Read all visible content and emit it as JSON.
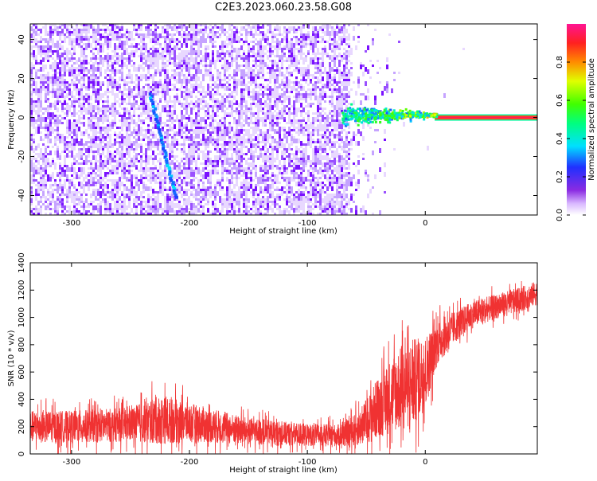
{
  "title": "C2E3.2023.060.23.58.G08",
  "chart_data": [
    {
      "type": "heatmap",
      "xlabel": "Height of straight line (km)",
      "ylabel": "Frequency (Hz)",
      "xlim": [
        -335,
        95
      ],
      "ylim": [
        -50,
        48
      ],
      "xticks": [
        -300,
        -200,
        -100,
        0
      ],
      "yticks": [
        -40,
        -20,
        0,
        20,
        40
      ],
      "colorbar": {
        "label": "Normalized spectral amplitude",
        "range": [
          0,
          1
        ],
        "ticks": [
          0.0,
          0.2,
          0.4,
          0.6,
          0.8
        ],
        "tick_labels": [
          "0.0",
          "0.2",
          "0.4",
          "0.6",
          "0.8"
        ]
      },
      "features": [
        {
          "name": "diagonal trace",
          "points": [
            [
              -233,
              12
            ],
            [
              -222,
              -15
            ],
            [
              -211,
              -42
            ]
          ],
          "amplitude": 0.25
        },
        {
          "name": "constant tone",
          "x_range": [
            8,
            95
          ],
          "frequency": 0,
          "amplitude": 0.95
        },
        {
          "name": "tone onset cluster",
          "x_range": [
            -70,
            10
          ],
          "frequency": 1,
          "amplitude": 0.45
        }
      ],
      "noise_edge_x": -65
    },
    {
      "type": "line",
      "xlabel": "Height of straight line (km)",
      "ylabel": "SNR (10 * v/v)",
      "xlim": [
        -335,
        95
      ],
      "ylim": [
        0,
        1400
      ],
      "xticks": [
        -300,
        -200,
        -100,
        0
      ],
      "yticks": [
        0,
        200,
        400,
        600,
        800,
        1000,
        1200,
        1400
      ],
      "series": [
        {
          "color": "#f03232",
          "x": [
            -335,
            -300,
            -250,
            -225,
            -200,
            -150,
            -100,
            -70,
            -55,
            -40,
            -25,
            -10,
            0,
            10,
            25,
            40,
            60,
            80,
            95
          ],
          "values": [
            200,
            200,
            215,
            250,
            230,
            165,
            140,
            135,
            195,
            340,
            460,
            520,
            600,
            810,
            930,
            1020,
            1080,
            1130,
            1180
          ],
          "spread": [
            130,
            130,
            140,
            200,
            160,
            110,
            90,
            90,
            150,
            250,
            330,
            360,
            300,
            180,
            130,
            110,
            100,
            100,
            100
          ]
        }
      ]
    }
  ]
}
